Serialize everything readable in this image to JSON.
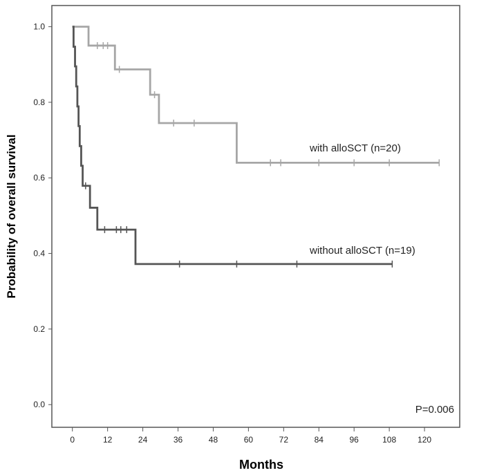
{
  "chart_data": {
    "type": "line",
    "xlabel": "Months",
    "ylabel": "Probability of overall survival",
    "xlim": [
      -7,
      132
    ],
    "ylim": [
      -0.06,
      1.056
    ],
    "xticks": [
      0,
      12,
      24,
      36,
      48,
      60,
      72,
      84,
      96,
      108,
      120
    ],
    "yticks": [
      0.0,
      0.2,
      0.4,
      0.6,
      0.8,
      1.0
    ],
    "xtick_labels": [
      "0",
      "12",
      "24",
      "36",
      "48",
      "60",
      "72",
      "84",
      "96",
      "108",
      "120"
    ],
    "ytick_labels": [
      "0.0",
      "0.2",
      "0.4",
      "0.6",
      "0.8",
      "1.0"
    ],
    "grid": false,
    "annotation": "P=0.006",
    "series": [
      {
        "label": "with alloSCT (n=20)",
        "color": "#a6a6a6",
        "steps": [
          [
            0,
            1.0
          ],
          [
            5.5,
            0.95
          ],
          [
            14.5,
            0.887
          ],
          [
            26.5,
            0.82
          ],
          [
            29.5,
            0.745
          ],
          [
            56,
            0.64
          ],
          [
            125,
            0.64
          ]
        ],
        "censored": [
          [
            8.5,
            0.95
          ],
          [
            10.5,
            0.95
          ],
          [
            12,
            0.95
          ],
          [
            16,
            0.887
          ],
          [
            28,
            0.82
          ],
          [
            34.5,
            0.745
          ],
          [
            41.5,
            0.745
          ],
          [
            67.5,
            0.64
          ],
          [
            71,
            0.64
          ],
          [
            84,
            0.64
          ],
          [
            96,
            0.64
          ],
          [
            108,
            0.64
          ],
          [
            125,
            0.64
          ]
        ]
      },
      {
        "label": "without alloSCT (n=19)",
        "color": "#555555",
        "steps": [
          [
            0,
            1.0
          ],
          [
            0.4,
            0.947
          ],
          [
            0.9,
            0.895
          ],
          [
            1.3,
            0.842
          ],
          [
            1.7,
            0.789
          ],
          [
            2.1,
            0.737
          ],
          [
            2.5,
            0.684
          ],
          [
            3.0,
            0.632
          ],
          [
            3.5,
            0.579
          ],
          [
            6.0,
            0.521
          ],
          [
            8.5,
            0.463
          ],
          [
            21.5,
            0.372
          ],
          [
            109,
            0.372
          ]
        ],
        "censored": [
          [
            4.5,
            0.579
          ],
          [
            11,
            0.463
          ],
          [
            15,
            0.463
          ],
          [
            16.5,
            0.463
          ],
          [
            18.5,
            0.463
          ],
          [
            36.5,
            0.372
          ],
          [
            56,
            0.372
          ],
          [
            76.5,
            0.372
          ],
          [
            109,
            0.372
          ]
        ]
      }
    ]
  }
}
